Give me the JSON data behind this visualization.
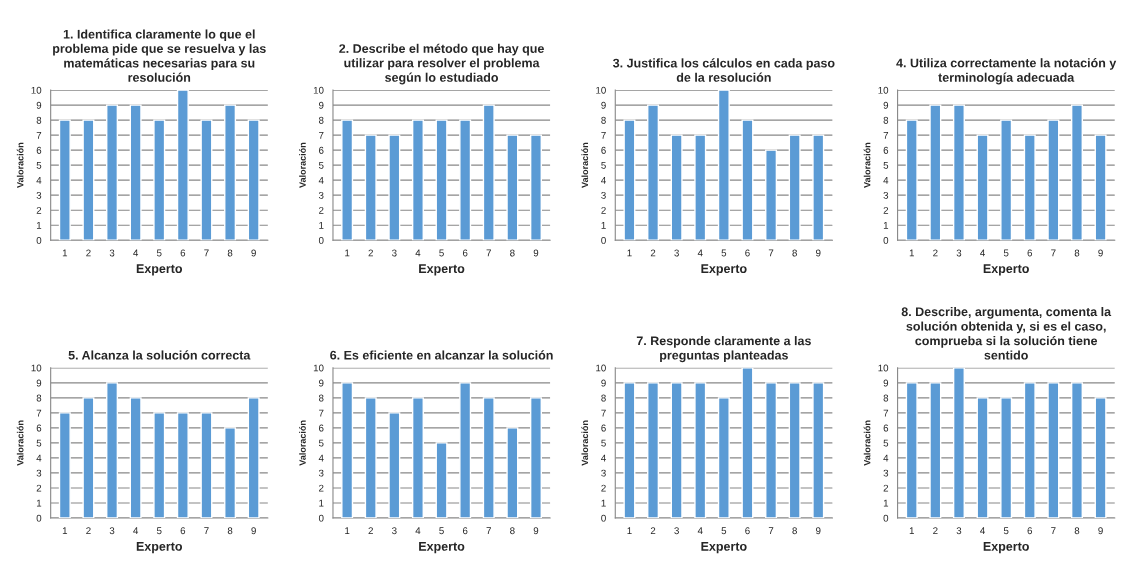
{
  "chart_data": [
    {
      "type": "bar",
      "title": "1. Identifica claramente lo que el\nproblema pide que se resuelva y las\nmatemáticas necesarias para su\nresolución",
      "xlabel": "Experto",
      "ylabel": "Valoración",
      "categories": [
        "1",
        "2",
        "3",
        "4",
        "5",
        "6",
        "7",
        "8",
        "9"
      ],
      "values": [
        8,
        8,
        9,
        9,
        8,
        10,
        8,
        9,
        8
      ],
      "color": "#5b9bd5",
      "ylim": [
        0,
        10
      ],
      "yticks": [
        0,
        1,
        2,
        3,
        4,
        5,
        6,
        7,
        8,
        9,
        10
      ],
      "grid": "y",
      "legend": false
    },
    {
      "type": "bar",
      "title": "2. Describe el método que hay que\nutilizar para resolver el problema\nsegún lo estudiado",
      "xlabel": "Experto",
      "ylabel": "Valoración",
      "categories": [
        "1",
        "2",
        "3",
        "4",
        "5",
        "6",
        "7",
        "8",
        "9"
      ],
      "values": [
        8,
        7,
        7,
        8,
        8,
        8,
        9,
        7,
        7
      ],
      "color": "#5b9bd5",
      "ylim": [
        0,
        10
      ],
      "yticks": [
        0,
        1,
        2,
        3,
        4,
        5,
        6,
        7,
        8,
        9,
        10
      ],
      "grid": "y",
      "legend": false
    },
    {
      "type": "bar",
      "title": "3. Justifica los cálculos en cada paso\nde la resolución",
      "xlabel": "Experto",
      "ylabel": "Valoración",
      "categories": [
        "1",
        "2",
        "3",
        "4",
        "5",
        "6",
        "7",
        "8",
        "9"
      ],
      "values": [
        8,
        9,
        7,
        7,
        10,
        8,
        6,
        7,
        7
      ],
      "color": "#5b9bd5",
      "ylim": [
        0,
        10
      ],
      "yticks": [
        0,
        1,
        2,
        3,
        4,
        5,
        6,
        7,
        8,
        9,
        10
      ],
      "grid": "y",
      "legend": false
    },
    {
      "type": "bar",
      "title": "4. Utiliza correctamente la notación y\nterminología adecuada",
      "xlabel": "Experto",
      "ylabel": "Valoración",
      "categories": [
        "1",
        "2",
        "3",
        "4",
        "5",
        "6",
        "7",
        "8",
        "9"
      ],
      "values": [
        8,
        9,
        9,
        7,
        8,
        7,
        8,
        9,
        7
      ],
      "color": "#5b9bd5",
      "ylim": [
        0,
        10
      ],
      "yticks": [
        0,
        1,
        2,
        3,
        4,
        5,
        6,
        7,
        8,
        9,
        10
      ],
      "grid": "y",
      "legend": false
    },
    {
      "type": "bar",
      "title": "5. Alcanza la solución correcta",
      "xlabel": "Experto",
      "ylabel": "Valoración",
      "categories": [
        "1",
        "2",
        "3",
        "4",
        "5",
        "6",
        "7",
        "8",
        "9"
      ],
      "values": [
        7,
        8,
        9,
        8,
        7,
        7,
        7,
        6,
        8
      ],
      "color": "#5b9bd5",
      "ylim": [
        0,
        10
      ],
      "yticks": [
        0,
        1,
        2,
        3,
        4,
        5,
        6,
        7,
        8,
        9,
        10
      ],
      "grid": "y",
      "legend": false
    },
    {
      "type": "bar",
      "title": "6. Es eficiente en alcanzar la solución",
      "xlabel": "Experto",
      "ylabel": "Valoración",
      "categories": [
        "1",
        "2",
        "3",
        "4",
        "5",
        "6",
        "7",
        "8",
        "9"
      ],
      "values": [
        9,
        8,
        7,
        8,
        5,
        9,
        8,
        6,
        8
      ],
      "color": "#5b9bd5",
      "ylim": [
        0,
        10
      ],
      "yticks": [
        0,
        1,
        2,
        3,
        4,
        5,
        6,
        7,
        8,
        9,
        10
      ],
      "grid": "y",
      "legend": false
    },
    {
      "type": "bar",
      "title": "7. Responde claramente a las\npreguntas planteadas",
      "xlabel": "Experto",
      "ylabel": "Valoración",
      "categories": [
        "1",
        "2",
        "3",
        "4",
        "5",
        "6",
        "7",
        "8",
        "9"
      ],
      "values": [
        9,
        9,
        9,
        9,
        8,
        10,
        9,
        9,
        9
      ],
      "color": "#5b9bd5",
      "ylim": [
        0,
        10
      ],
      "yticks": [
        0,
        1,
        2,
        3,
        4,
        5,
        6,
        7,
        8,
        9,
        10
      ],
      "grid": "y",
      "legend": false
    },
    {
      "type": "bar",
      "title": "8. Describe, argumenta, comenta la\nsolución obtenida y, si es el caso,\ncomprueba si la solución tiene\nsentido",
      "xlabel": "Experto",
      "ylabel": "Valoración",
      "categories": [
        "1",
        "2",
        "3",
        "4",
        "5",
        "6",
        "7",
        "8",
        "9"
      ],
      "values": [
        9,
        9,
        10,
        8,
        8,
        9,
        9,
        9,
        8
      ],
      "color": "#5b9bd5",
      "ylim": [
        0,
        10
      ],
      "yticks": [
        0,
        1,
        2,
        3,
        4,
        5,
        6,
        7,
        8,
        9,
        10
      ],
      "grid": "y",
      "legend": false
    }
  ]
}
